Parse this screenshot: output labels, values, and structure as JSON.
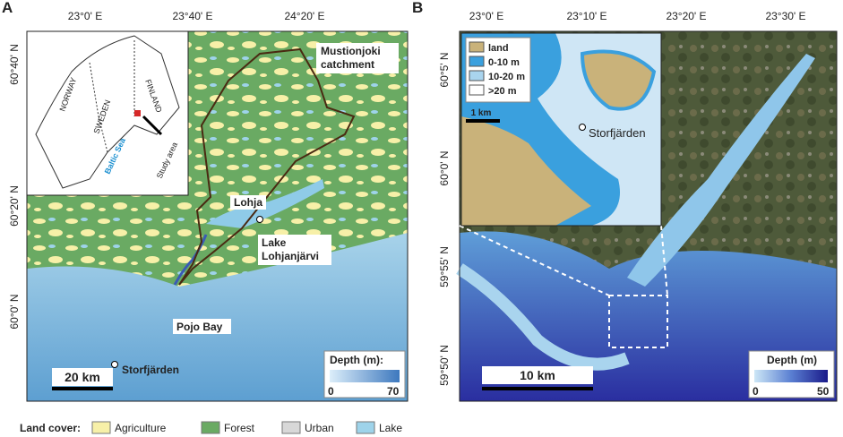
{
  "panel_a": {
    "letter": "A",
    "top_ticks": [
      "23°0' E",
      "23°40' E",
      "24°20' E"
    ],
    "left_ticks": [
      "60°40' N",
      "60°20' N",
      "60°0' N"
    ],
    "inset": {
      "countries": [
        "NORWAY",
        "SWEDEN",
        "FINLAND"
      ],
      "sea": "Baltic Sea",
      "study_area": "Study area"
    },
    "labels": {
      "catchment": [
        "Mustionjoki",
        "catchment"
      ],
      "town": "Lohja",
      "lake": [
        "Lake",
        "Lohjanjärvi"
      ],
      "bay": "Pojo Bay",
      "site": "Storfjärden"
    },
    "scale": "20 km",
    "depth_legend": {
      "title": "Depth (m):",
      "min": 0,
      "max": 70
    }
  },
  "panel_b": {
    "letter": "B",
    "top_ticks": [
      "23°0' E",
      "23°10' E",
      "23°20' E",
      "23°30' E"
    ],
    "left_ticks": [
      "60°5' N",
      "60°0' N",
      "59°55' N",
      "59°50' N"
    ],
    "inset": {
      "legend": [
        "land",
        "0-10 m",
        "10-20 m",
        ">20 m"
      ],
      "scale": "1 km",
      "site": "Storfjärden"
    },
    "scale": "10 km",
    "depth_legend": {
      "title": "Depth (m)",
      "min": 0,
      "max": 50
    }
  },
  "land_cover": {
    "title": "Land cover:",
    "items": [
      "Agriculture",
      "Forest",
      "Urban",
      "Lake"
    ]
  }
}
